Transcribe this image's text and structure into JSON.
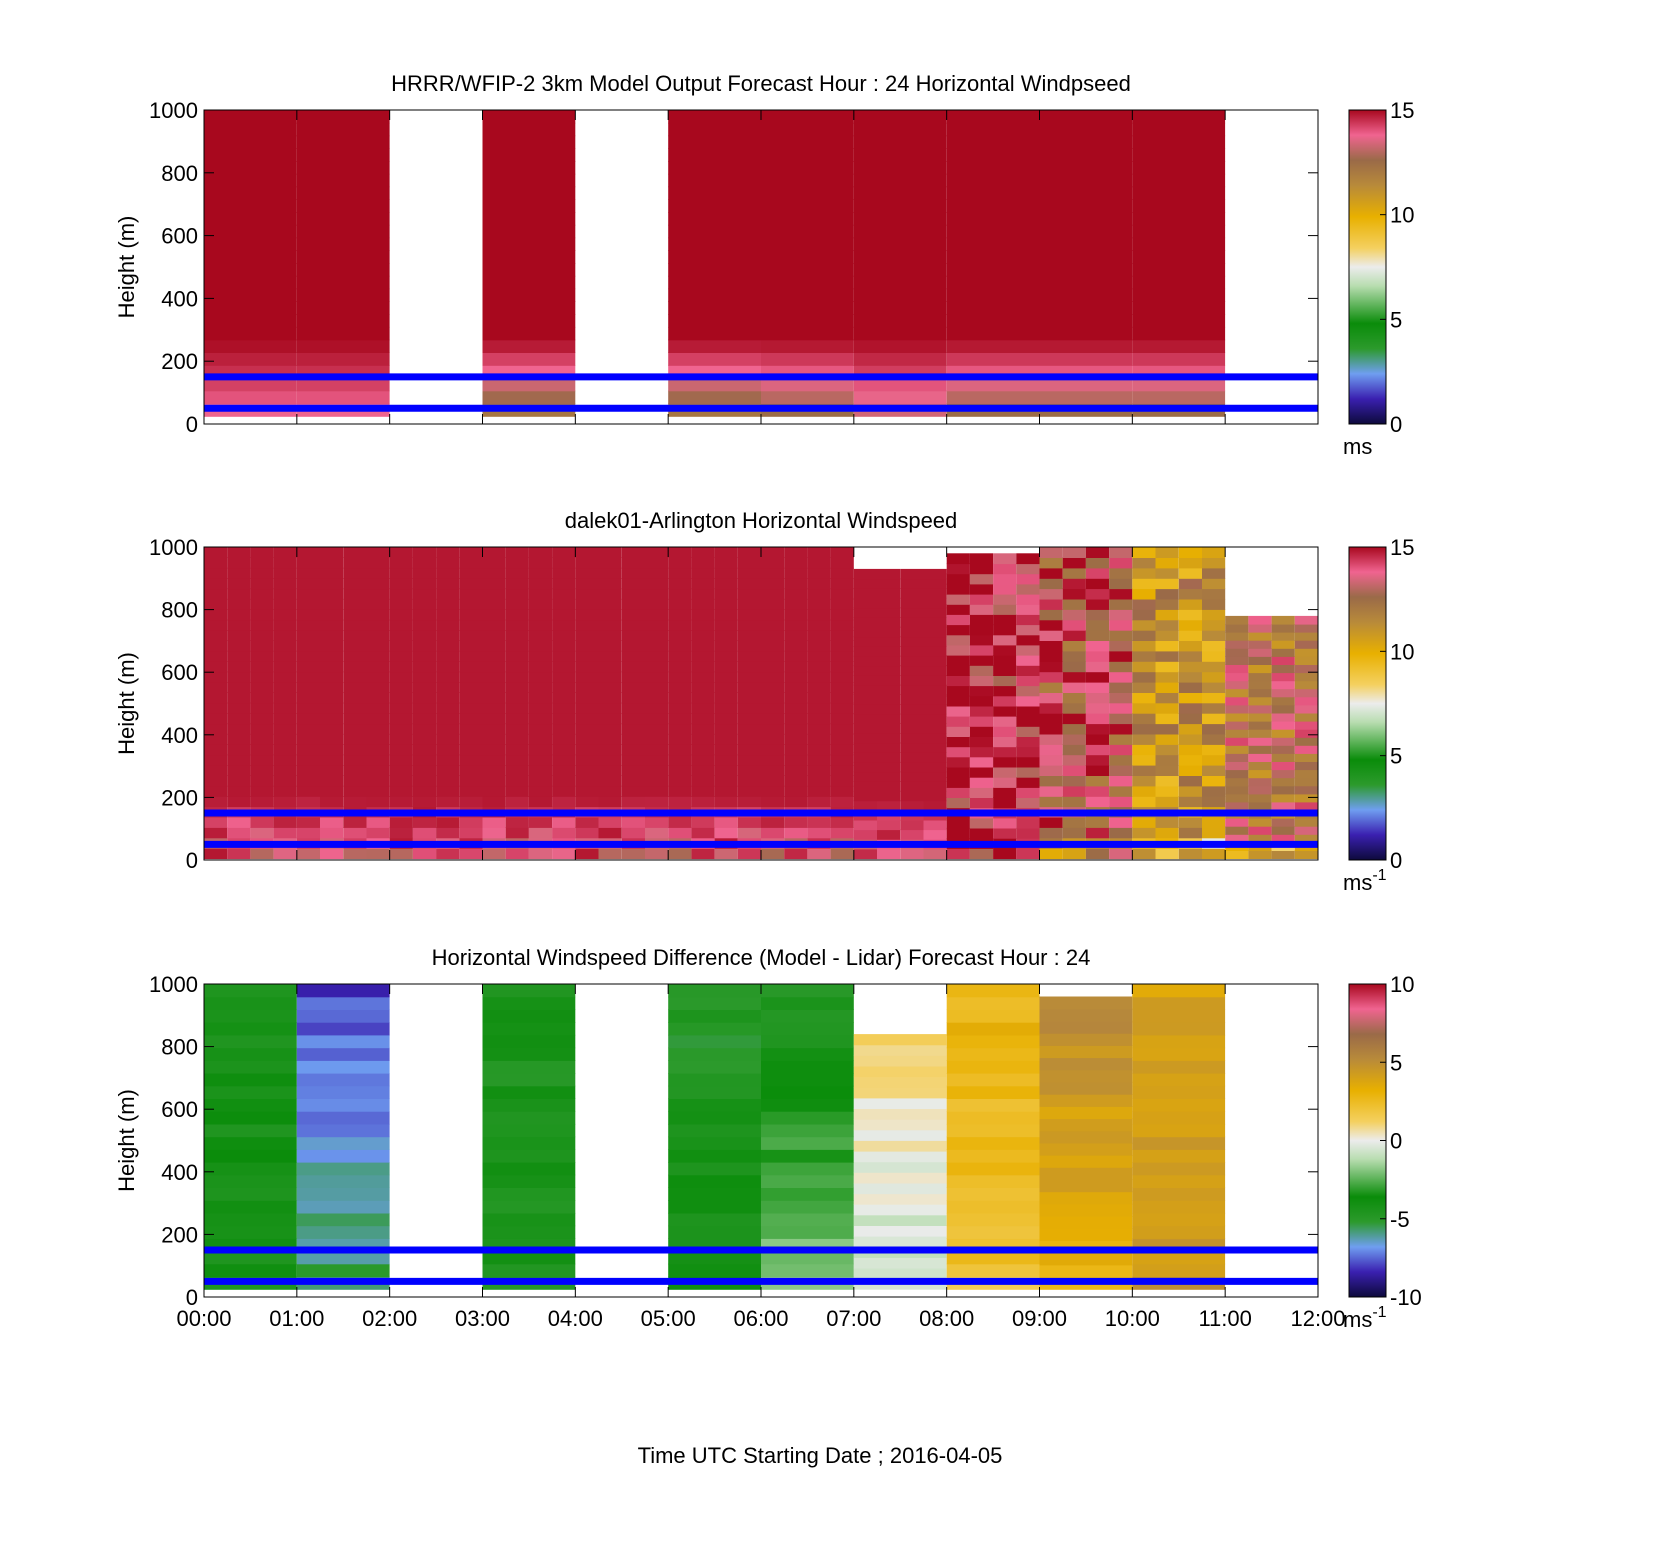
{
  "figure": {
    "xlabel": "Time UTC  Starting Date ; 2016-04-05",
    "time_ticks": [
      "00:00",
      "01:00",
      "02:00",
      "03:00",
      "04:00",
      "05:00",
      "06:00",
      "07:00",
      "08:00",
      "09:00",
      "10:00",
      "11:00",
      "12:00"
    ]
  },
  "chart_data": [
    {
      "type": "heatmap",
      "title": "HRRR/WFIP-2 3km Model Output   Forecast Hour : 24 Horizontal Windpseed",
      "ylabel": "Height (m)",
      "y_ticks": [
        "0",
        "200",
        "400",
        "600",
        "800",
        "1000"
      ],
      "ylim": [
        0,
        1000
      ],
      "xlim": [
        "00:00",
        "12:00"
      ],
      "colorbar": {
        "ticks": [
          "0",
          "5",
          "10",
          "15"
        ],
        "range": [
          0,
          15
        ],
        "unit_label": "ms",
        "unit_sup": ""
      },
      "reference_lines_m": [
        50,
        150
      ],
      "columns": [
        {
          "start": "00:00",
          "end": "01:00",
          "data": true,
          "low_speed": 13.5,
          "top_height": 1000
        },
        {
          "start": "01:00",
          "end": "02:00",
          "data": true,
          "low_speed": 13.5,
          "top_height": 1000
        },
        {
          "start": "02:00",
          "end": "03:00",
          "data": false
        },
        {
          "start": "03:00",
          "end": "04:00",
          "data": true,
          "low_speed": 11.5,
          "top_height": 1000
        },
        {
          "start": "04:00",
          "end": "05:00",
          "data": false
        },
        {
          "start": "05:00",
          "end": "06:00",
          "data": true,
          "low_speed": 11.5,
          "top_height": 1000
        },
        {
          "start": "06:00",
          "end": "07:00",
          "data": true,
          "low_speed": 12.0,
          "top_height": 1000
        },
        {
          "start": "07:00",
          "end": "08:00",
          "data": true,
          "low_speed": 13.0,
          "top_height": 1000
        },
        {
          "start": "08:00",
          "end": "09:00",
          "data": true,
          "low_speed": 12.0,
          "top_height": 1000
        },
        {
          "start": "09:00",
          "end": "10:00",
          "data": true,
          "low_speed": 12.0,
          "top_height": 1000
        },
        {
          "start": "10:00",
          "end": "11:00",
          "data": true,
          "low_speed": 12.0,
          "top_height": 1000
        },
        {
          "start": "11:00",
          "end": "12:00",
          "data": false
        }
      ]
    },
    {
      "type": "heatmap",
      "title": "dalek01-Arlington  Horizontal Windspeed",
      "ylabel": "Height (m)",
      "y_ticks": [
        "0",
        "200",
        "400",
        "600",
        "800",
        "1000"
      ],
      "ylim": [
        0,
        1000
      ],
      "xlim": [
        "00:00",
        "12:00"
      ],
      "colorbar": {
        "ticks": [
          "0",
          "5",
          "10",
          "15"
        ],
        "range": [
          0,
          15
        ],
        "unit_label": "ms",
        "unit_sup": "-1"
      },
      "reference_lines_m": [
        50,
        150
      ],
      "blocks_per_hour": 4,
      "hour_speeds": [
        14.8,
        14.8,
        14.8,
        14.8,
        14.8,
        14.8,
        14.8,
        14.8,
        14.5,
        13.5,
        11.0,
        12.5
      ],
      "hour_top_heights": [
        1000,
        1000,
        1000,
        1000,
        1000,
        1000,
        1000,
        930,
        980,
        1000,
        1000,
        780
      ]
    },
    {
      "type": "heatmap",
      "title": "Horizontal Windspeed Difference (Model - Lidar) Forecast Hour : 24",
      "ylabel": "Height (m)",
      "y_ticks": [
        "0",
        "200",
        "400",
        "600",
        "800",
        "1000"
      ],
      "ylim": [
        0,
        1000
      ],
      "xlim": [
        "00:00",
        "12:00"
      ],
      "colorbar": {
        "ticks": [
          "-10",
          "-5",
          "0",
          "5",
          "10"
        ],
        "range": [
          -10,
          10
        ],
        "unit_label": "ms",
        "unit_sup": "-1"
      },
      "reference_lines_m": [
        50,
        150
      ],
      "columns": [
        {
          "start": "00:00",
          "end": "01:00",
          "data": true,
          "diff_top": -4.5,
          "diff_bottom": -4.0,
          "top_height": 1000
        },
        {
          "start": "01:00",
          "end": "02:00",
          "data": true,
          "diff_top": -8.0,
          "diff_bottom": -5.5,
          "top_height": 1000
        },
        {
          "start": "02:00",
          "end": "03:00",
          "data": false
        },
        {
          "start": "03:00",
          "end": "04:00",
          "data": true,
          "diff_top": -4.5,
          "diff_bottom": -4.5,
          "top_height": 1000
        },
        {
          "start": "04:00",
          "end": "05:00",
          "data": false
        },
        {
          "start": "05:00",
          "end": "06:00",
          "data": true,
          "diff_top": -5.0,
          "diff_bottom": -4.0,
          "top_height": 1000
        },
        {
          "start": "06:00",
          "end": "07:00",
          "data": true,
          "diff_top": -4.5,
          "diff_bottom": -2.0,
          "top_height": 1000
        },
        {
          "start": "07:00",
          "end": "08:00",
          "data": true,
          "diff_top": 1.0,
          "diff_bottom": -1.0,
          "top_height": 840
        },
        {
          "start": "08:00",
          "end": "09:00",
          "data": true,
          "diff_top": 3.0,
          "diff_bottom": 2.0,
          "top_height": 1000
        },
        {
          "start": "09:00",
          "end": "10:00",
          "data": true,
          "diff_top": 5.0,
          "diff_bottom": 3.0,
          "top_height": 960
        },
        {
          "start": "10:00",
          "end": "11:00",
          "data": true,
          "diff_top": 4.0,
          "diff_bottom": 4.5,
          "top_height": 1000
        },
        {
          "start": "11:00",
          "end": "12:00",
          "data": false
        }
      ]
    }
  ]
}
